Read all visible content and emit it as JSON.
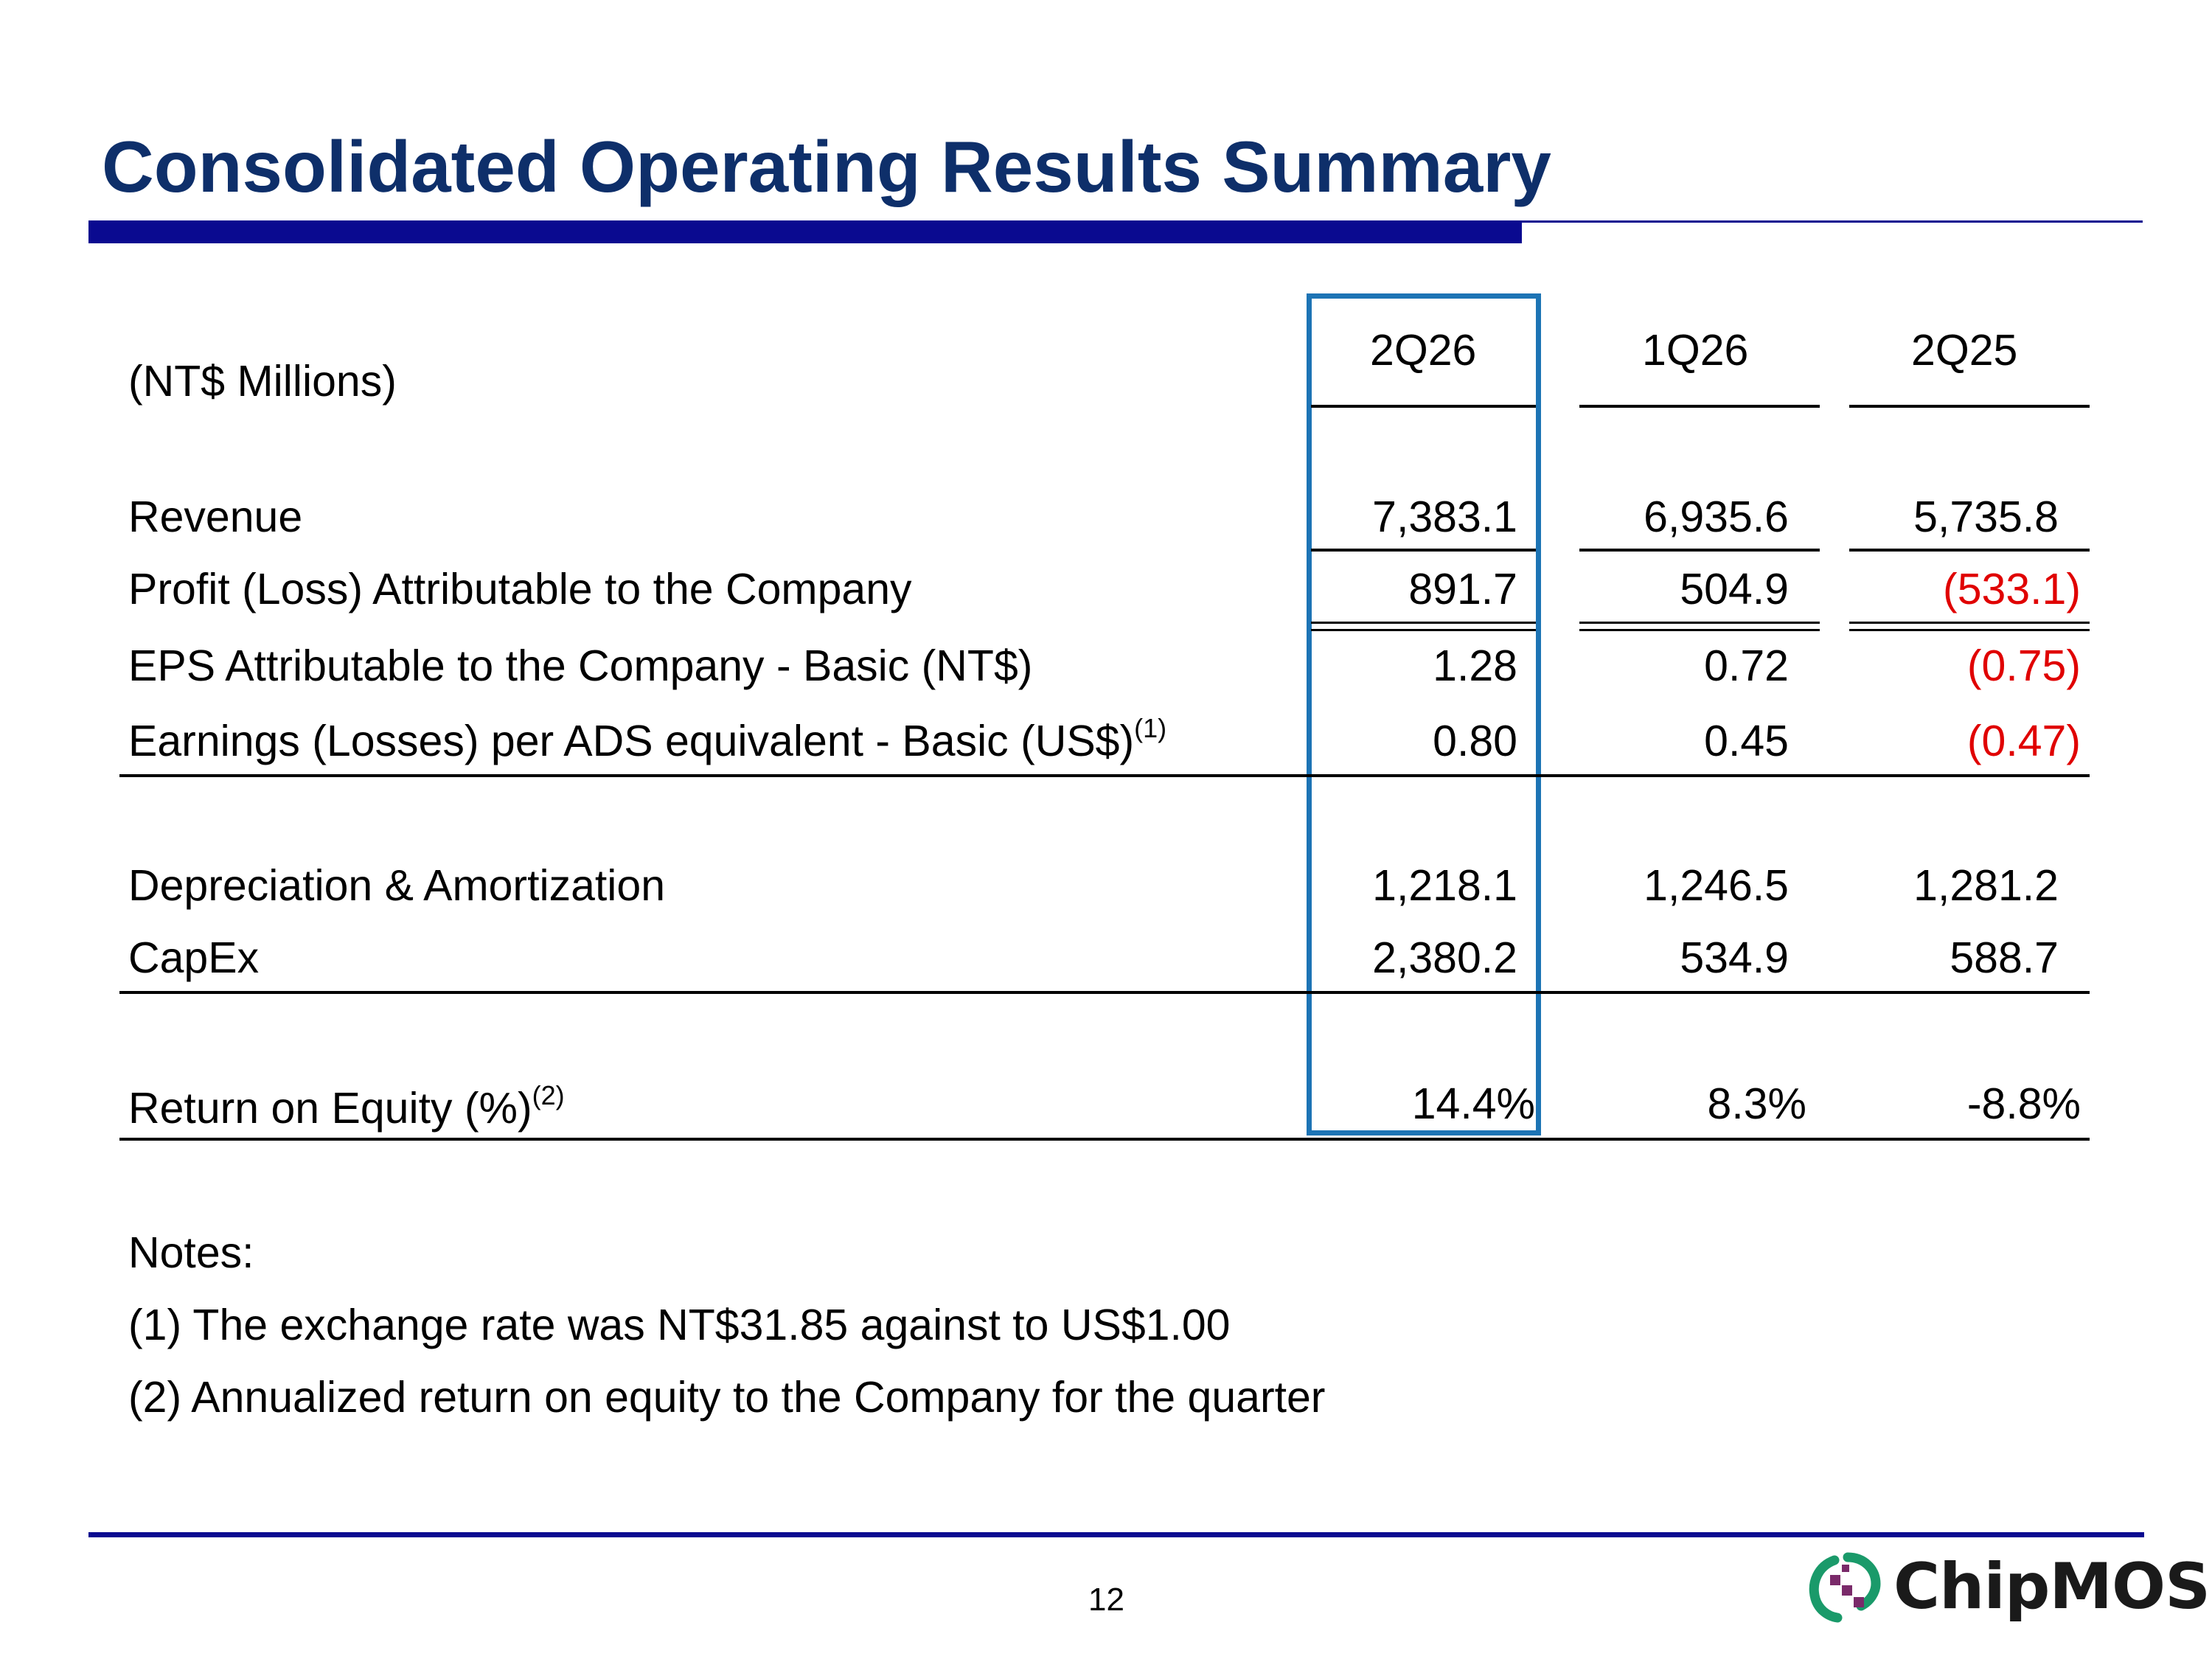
{
  "slide": {
    "title": "Consolidated Operating Results Summary",
    "page_number": "12",
    "logo_text": "ChipMOS"
  },
  "table": {
    "unit_label": "(NT$ Millions)",
    "columns": [
      "2Q26",
      "1Q26",
      "2Q25"
    ],
    "rows": [
      {
        "label": "Revenue",
        "footnote": "",
        "values": [
          "7,383.1",
          "6,935.6",
          "5,735.8"
        ]
      },
      {
        "label": "Profit (Loss) Attributable to the Company",
        "footnote": "",
        "values": [
          "891.7",
          "504.9",
          "(533.1)"
        ]
      },
      {
        "label": "EPS Attributable to the Company - Basic (NT$)",
        "footnote": "",
        "values": [
          "1.28",
          "0.72",
          "(0.75)"
        ]
      },
      {
        "label": "Earnings (Losses) per ADS equivalent - Basic (US$)",
        "footnote": "(1)",
        "values": [
          "0.80",
          "0.45",
          "(0.47)"
        ]
      },
      {
        "label": "Depreciation & Amortization",
        "footnote": "",
        "values": [
          "1,218.1",
          "1,246.5",
          "1,281.2"
        ]
      },
      {
        "label": "CapEx",
        "footnote": "",
        "values": [
          "2,380.2",
          "534.9",
          "588.7"
        ]
      },
      {
        "label": "Return on Equity (%)",
        "footnote": "(2)",
        "values": [
          "14.4%",
          "8.3%",
          "-8.8%"
        ]
      }
    ]
  },
  "notes": {
    "heading": "Notes:",
    "items": [
      "(1) The exchange rate was NT$31.85 against to US$1.00",
      "(2) Annualized return on equity to the Company for the quarter"
    ]
  },
  "colors": {
    "title": "#0e2f6a",
    "rule": "#0a0a90",
    "highlight_box": "#1d74b5",
    "negative": "#e00000",
    "logo_green": "#1a9a6a",
    "logo_purple": "#7a2a6a"
  }
}
